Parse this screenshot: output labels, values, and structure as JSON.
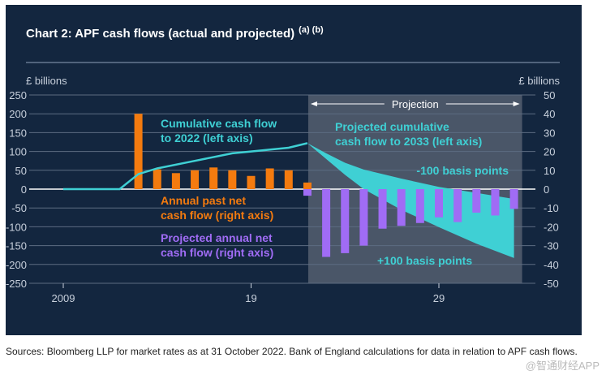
{
  "chart_data": {
    "type": "bar+line+area",
    "title": "Chart 2: APF cash flows (actual and projected)",
    "title_notes": "(a) (b)",
    "left_axis": {
      "label": "£ billions",
      "ylim": [
        -250,
        250
      ],
      "ticks": [
        250,
        200,
        150,
        100,
        50,
        0,
        -50,
        -100,
        -150,
        -200,
        -250
      ]
    },
    "right_axis": {
      "label": "£ billions",
      "ylim": [
        -50,
        50
      ],
      "ticks": [
        50,
        40,
        30,
        20,
        10,
        0,
        -10,
        -20,
        -30,
        -40,
        -50
      ]
    },
    "x_ticks": [
      {
        "year": 2009,
        "label": "2009"
      },
      {
        "year": 2019,
        "label": "19"
      },
      {
        "year": 2029,
        "label": "29"
      }
    ],
    "xlim": [
      2009,
      2033
    ],
    "projection": {
      "label": "Projection",
      "from": 2022,
      "to": 2033
    },
    "past_bars": {
      "name": "Annual past net cash flow (right axis)",
      "color": "#f47b0f",
      "x": [
        2013,
        2014,
        2015,
        2016,
        2017,
        2018,
        2019,
        2020,
        2021,
        2022
      ],
      "values": [
        40,
        10.5,
        8.5,
        10,
        11.5,
        10,
        7,
        11,
        10,
        3.5
      ]
    },
    "projected_bars": {
      "name": "Projected annual net cash flow (right axis)",
      "color": "#a06cf5",
      "x": [
        2022,
        2023,
        2024,
        2025,
        2026,
        2027,
        2028,
        2029,
        2030,
        2031,
        2032,
        2033
      ],
      "values": [
        -3.5,
        -36,
        -34,
        -30,
        -21,
        -19.5,
        -18,
        -15,
        -17.5,
        -12.5,
        -14,
        -10.5
      ]
    },
    "cumulative_line": {
      "name": "Cumulative cash flow to 2022 (left axis)",
      "color": "#3fd0d4",
      "x": [
        2009,
        2012,
        2013,
        2014,
        2016,
        2018,
        2019,
        2021,
        2022
      ],
      "values": [
        0,
        0,
        40,
        55,
        75,
        95,
        100,
        110,
        122
      ]
    },
    "projected_band": {
      "name": "Projected cumulative cash flow to 2033 (left axis)",
      "color": "#3fd0d4",
      "upper_label": "-100 basis points",
      "lower_label": "+100 basis points",
      "x": [
        2022,
        2023,
        2024,
        2025,
        2027,
        2029,
        2031,
        2033
      ],
      "upper": [
        122,
        95,
        70,
        52,
        28,
        6,
        -10,
        -26
      ],
      "lower": [
        122,
        80,
        38,
        0,
        -55,
        -101,
        -145,
        -183
      ]
    }
  },
  "source_text": "Sources: Bloomberg LLP for market rates as at 31 October 2022. Bank of England calculations for data in relation to APF cash flows.",
  "watermark": "@智通财经APP"
}
